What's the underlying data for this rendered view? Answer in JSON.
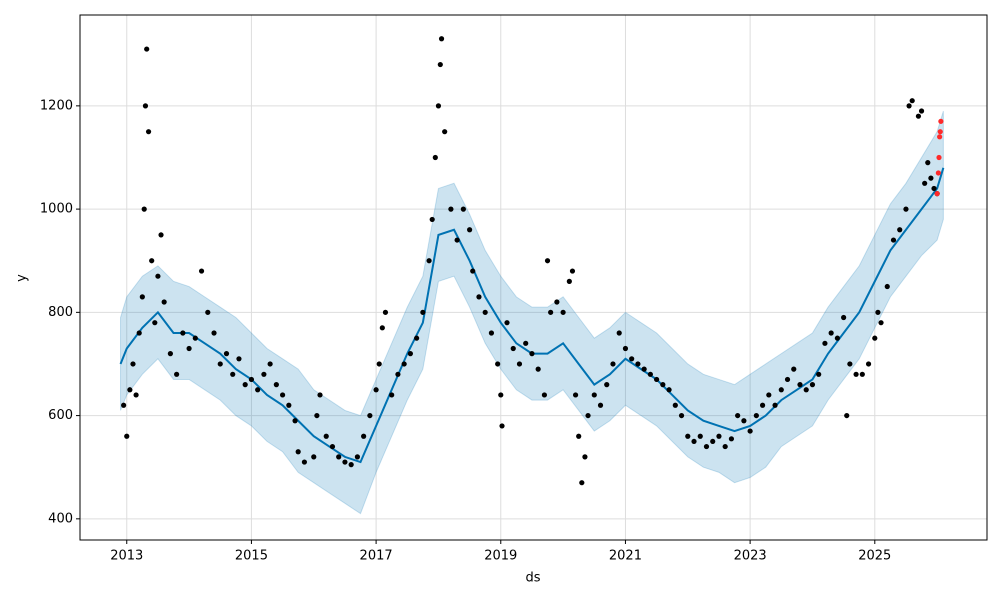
{
  "chart_data": {
    "type": "forecast",
    "xlabel": "ds",
    "ylabel": "y",
    "xlim": [
      2012.25,
      2026.8
    ],
    "ylim": [
      359,
      1376
    ],
    "xticks": [
      2013,
      2015,
      2017,
      2019,
      2021,
      2023,
      2025
    ],
    "yticks": [
      400,
      600,
      800,
      1000,
      1200
    ],
    "grid": true,
    "forecast": {
      "color": "#0072B2",
      "x": [
        2012.9,
        2013.0,
        2013.25,
        2013.5,
        2013.75,
        2014.0,
        2014.25,
        2014.5,
        2014.75,
        2015.0,
        2015.25,
        2015.5,
        2015.75,
        2016.0,
        2016.25,
        2016.5,
        2016.75,
        2017.0,
        2017.25,
        2017.5,
        2017.75,
        2018.0,
        2018.25,
        2018.5,
        2018.75,
        2019.0,
        2019.25,
        2019.5,
        2019.75,
        2020.0,
        2020.25,
        2020.5,
        2020.75,
        2021.0,
        2021.25,
        2021.5,
        2021.75,
        2022.0,
        2022.25,
        2022.5,
        2022.75,
        2023.0,
        2023.25,
        2023.5,
        2023.75,
        2024.0,
        2024.25,
        2024.5,
        2024.75,
        2025.0,
        2025.25,
        2025.5,
        2025.75,
        2026.0,
        2026.1
      ],
      "yhat": [
        700,
        730,
        770,
        800,
        760,
        760,
        740,
        720,
        690,
        670,
        640,
        620,
        590,
        560,
        540,
        520,
        510,
        580,
        650,
        720,
        780,
        950,
        960,
        900,
        830,
        780,
        740,
        720,
        720,
        740,
        700,
        660,
        680,
        710,
        690,
        670,
        640,
        610,
        590,
        580,
        570,
        580,
        600,
        630,
        650,
        670,
        720,
        760,
        800,
        860,
        920,
        960,
        1000,
        1040,
        1080
      ],
      "upper": [
        790,
        830,
        870,
        890,
        860,
        850,
        830,
        810,
        790,
        760,
        730,
        710,
        690,
        650,
        630,
        610,
        600,
        670,
        740,
        810,
        870,
        1040,
        1050,
        990,
        920,
        870,
        830,
        810,
        810,
        830,
        790,
        750,
        770,
        800,
        780,
        760,
        730,
        700,
        680,
        670,
        660,
        680,
        700,
        720,
        740,
        760,
        810,
        850,
        890,
        950,
        1010,
        1050,
        1100,
        1150,
        1190
      ],
      "lower": [
        610,
        640,
        680,
        710,
        670,
        670,
        650,
        630,
        600,
        580,
        550,
        530,
        490,
        470,
        450,
        430,
        410,
        490,
        560,
        630,
        690,
        860,
        870,
        810,
        740,
        690,
        650,
        630,
        630,
        650,
        610,
        570,
        590,
        620,
        600,
        580,
        550,
        520,
        500,
        490,
        470,
        480,
        500,
        540,
        560,
        580,
        630,
        670,
        710,
        770,
        830,
        870,
        910,
        940,
        980
      ]
    },
    "observed": {
      "color": "#000000",
      "x": [
        2012.95,
        2013.0,
        2013.05,
        2013.1,
        2013.15,
        2013.2,
        2013.25,
        2013.28,
        2013.3,
        2013.32,
        2013.35,
        2013.4,
        2013.45,
        2013.5,
        2013.55,
        2013.6,
        2013.7,
        2013.8,
        2013.9,
        2014.0,
        2014.1,
        2014.2,
        2014.3,
        2014.4,
        2014.5,
        2014.6,
        2014.7,
        2014.8,
        2014.9,
        2015.0,
        2015.1,
        2015.2,
        2015.3,
        2015.4,
        2015.5,
        2015.6,
        2015.7,
        2015.75,
        2015.85,
        2016.0,
        2016.05,
        2016.1,
        2016.2,
        2016.3,
        2016.4,
        2016.5,
        2016.6,
        2016.7,
        2016.8,
        2016.9,
        2017.0,
        2017.05,
        2017.1,
        2017.15,
        2017.25,
        2017.35,
        2017.45,
        2017.55,
        2017.65,
        2017.75,
        2017.85,
        2017.9,
        2017.95,
        2018.0,
        2018.03,
        2018.05,
        2018.1,
        2018.2,
        2018.3,
        2018.4,
        2018.5,
        2018.55,
        2018.65,
        2018.75,
        2018.85,
        2018.95,
        2019.0,
        2019.02,
        2019.1,
        2019.2,
        2019.3,
        2019.4,
        2019.5,
        2019.6,
        2019.7,
        2019.75,
        2019.8,
        2019.9,
        2020.0,
        2020.1,
        2020.15,
        2020.2,
        2020.25,
        2020.3,
        2020.35,
        2020.4,
        2020.5,
        2020.6,
        2020.7,
        2020.8,
        2020.9,
        2021.0,
        2021.1,
        2021.2,
        2021.3,
        2021.4,
        2021.5,
        2021.6,
        2021.7,
        2021.8,
        2021.9,
        2022.0,
        2022.1,
        2022.2,
        2022.3,
        2022.4,
        2022.5,
        2022.6,
        2022.7,
        2022.8,
        2022.9,
        2023.0,
        2023.1,
        2023.2,
        2023.3,
        2023.4,
        2023.5,
        2023.6,
        2023.7,
        2023.8,
        2023.9,
        2024.0,
        2024.1,
        2024.2,
        2024.3,
        2024.4,
        2024.5,
        2024.55,
        2024.6,
        2024.7,
        2024.8,
        2024.9,
        2025.0,
        2025.05,
        2025.1,
        2025.2,
        2025.3,
        2025.4,
        2025.5,
        2025.55,
        2025.6,
        2025.7,
        2025.75,
        2025.8,
        2025.85,
        2025.9,
        2025.95,
        2026.0
      ],
      "values": [
        620,
        560,
        650,
        700,
        640,
        760,
        830,
        1000,
        1200,
        1310,
        1150,
        900,
        780,
        870,
        950,
        820,
        720,
        680,
        760,
        730,
        750,
        880,
        800,
        760,
        700,
        720,
        680,
        710,
        660,
        670,
        650,
        680,
        700,
        660,
        640,
        620,
        590,
        530,
        510,
        520,
        600,
        640,
        560,
        540,
        520,
        510,
        505,
        520,
        560,
        600,
        650,
        700,
        770,
        800,
        640,
        680,
        700,
        720,
        750,
        800,
        900,
        980,
        1100,
        1200,
        1280,
        1330,
        1150,
        1000,
        940,
        1000,
        960,
        880,
        830,
        800,
        760,
        700,
        640,
        580,
        780,
        730,
        700,
        740,
        720,
        690,
        640,
        900,
        800,
        820,
        800,
        860,
        880,
        640,
        560,
        470,
        520,
        600,
        640,
        620,
        660,
        700,
        760,
        730,
        710,
        700,
        690,
        680,
        670,
        660,
        650,
        620,
        600,
        560,
        550,
        560,
        540,
        550,
        560,
        540,
        555,
        600,
        590,
        570,
        600,
        620,
        640,
        620,
        650,
        670,
        690,
        660,
        650,
        660,
        680,
        740,
        760,
        750,
        790,
        600,
        700,
        680,
        680,
        700,
        750,
        800,
        780,
        850,
        940,
        960,
        1000,
        1200,
        1210,
        1180,
        1190,
        1050,
        1090,
        1060,
        1040,
        1030
      ]
    },
    "recent": {
      "color": "#ff2a2a",
      "x": [
        2026.0,
        2026.02,
        2026.03,
        2026.04,
        2026.05,
        2026.06
      ],
      "values": [
        1030,
        1070,
        1100,
        1140,
        1150,
        1170
      ]
    }
  }
}
